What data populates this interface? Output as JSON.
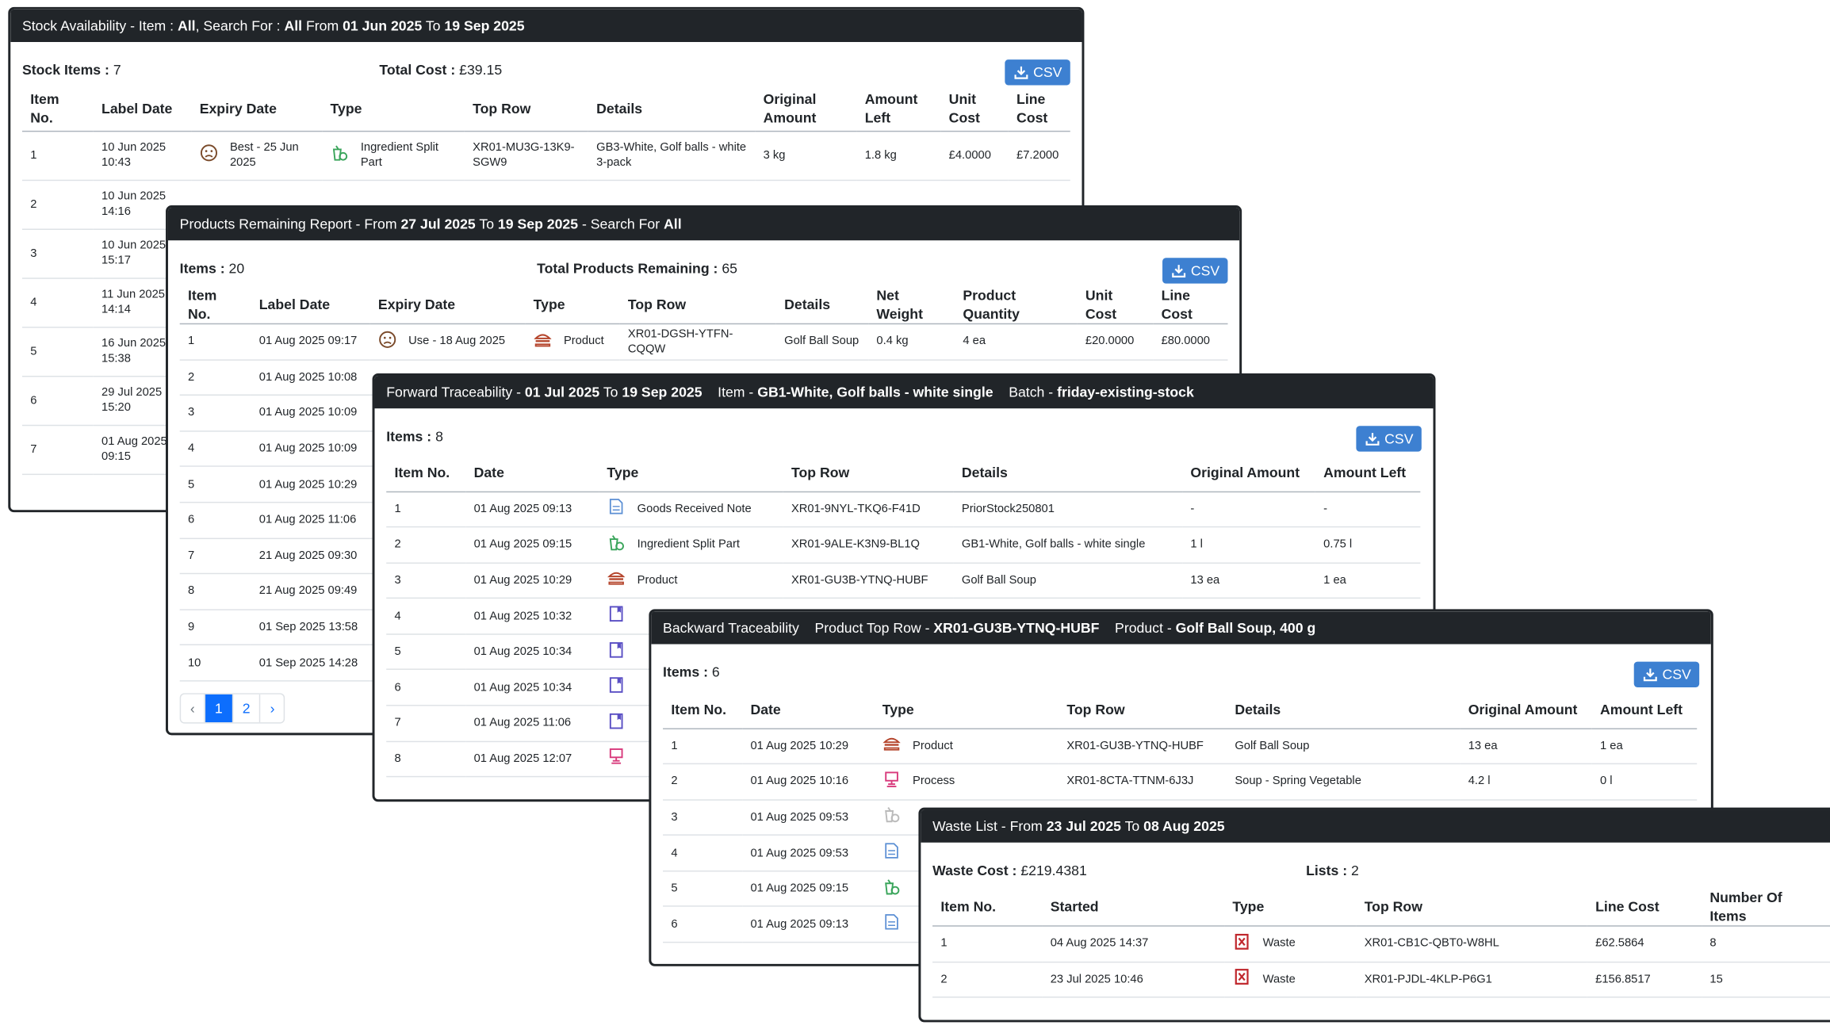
{
  "panels": [
    {
      "title": [
        {
          "t": "Stock Availability - Item : "
        },
        {
          "t": "All",
          "b": true
        },
        {
          "t": ", Search For : "
        },
        {
          "t": "All",
          "b": true
        },
        {
          "t": " From "
        },
        {
          "t": "01 Jun 2025",
          "b": true
        },
        {
          "t": " To "
        },
        {
          "t": "19 Sep 2025",
          "b": true
        }
      ],
      "summary": [
        {
          "label": "Stock Items :",
          "value": "7"
        },
        {
          "label": "Total Cost :",
          "value": "£39.15"
        }
      ],
      "csv": "CSV",
      "columns": [
        "Item No.",
        "Label Date",
        "Expiry Date",
        "Type",
        "Top Row",
        "Details",
        "Original Amount",
        "Amount Left",
        "Unit Cost",
        "Line Cost"
      ],
      "rows": [
        [
          "1",
          "10 Jun 2025 10:43",
          {
            "icon": "sad",
            "text": "Best - 25 Jun 2025"
          },
          {
            "icon": "split",
            "text": "Ingredient Split Part"
          },
          "XR01-MU3G-13K9-SGW9",
          "GB3-White, Golf balls - white 3-pack",
          "3 kg",
          "1.8 kg",
          "£4.0000",
          "£7.2000"
        ],
        [
          "2",
          "10 Jun 2025 14:16"
        ],
        [
          "3",
          "10 Jun 2025 15:17"
        ],
        [
          "4",
          "11 Jun 2025 14:14"
        ],
        [
          "5",
          "16 Jun 2025 15:38"
        ],
        [
          "6",
          "29 Jul 2025 15:20"
        ],
        [
          "7",
          "01 Aug 2025 09:15"
        ]
      ]
    },
    {
      "title": [
        {
          "t": "Products Remaining Report - From "
        },
        {
          "t": "27 Jul 2025",
          "b": true
        },
        {
          "t": " To "
        },
        {
          "t": "19 Sep 2025",
          "b": true
        },
        {
          "t": " - Search For "
        },
        {
          "t": "All",
          "b": true
        }
      ],
      "summary": [
        {
          "label": "Items :",
          "value": "20"
        },
        {
          "label": "Total Products Remaining :",
          "value": "65"
        }
      ],
      "csv": "CSV",
      "columns": [
        "Item No.",
        "Label Date",
        "Expiry Date",
        "Type",
        "Top Row",
        "Details",
        "Net Weight",
        "Product Quantity",
        "Unit Cost",
        "Line Cost"
      ],
      "rows": [
        [
          "1",
          "01 Aug 2025 09:17",
          {
            "icon": "sad",
            "text": "Use - 18 Aug 2025"
          },
          {
            "icon": "product",
            "text": "Product"
          },
          "XR01-DGSH-YTFN-CQQW",
          "Golf Ball Soup",
          "0.4 kg",
          "4 ea",
          "£20.0000",
          "£80.0000"
        ],
        [
          "2",
          "01 Aug 2025 10:08"
        ],
        [
          "3",
          "01 Aug 2025 10:09"
        ],
        [
          "4",
          "01 Aug 2025 10:09"
        ],
        [
          "5",
          "01 Aug 2025 10:29"
        ],
        [
          "6",
          "01 Aug 2025 11:06"
        ],
        [
          "7",
          "21 Aug 2025 09:30"
        ],
        [
          "8",
          "21 Aug 2025 09:49"
        ],
        [
          "9",
          "01 Sep 2025 13:58"
        ],
        [
          "10",
          "01 Sep 2025 14:28"
        ]
      ],
      "pagination": [
        "‹",
        "1",
        "2",
        "›"
      ],
      "active_page": 1
    },
    {
      "title": [
        {
          "t": "Forward Traceability - "
        },
        {
          "t": "01 Jul 2025",
          "b": true
        },
        {
          "t": " To "
        },
        {
          "t": "19 Sep 2025",
          "b": true
        },
        {
          "t": "    Item - "
        },
        {
          "t": "GB1-White, Golf balls - white single",
          "b": true
        },
        {
          "t": "    Batch - "
        },
        {
          "t": "friday-existing-stock",
          "b": true
        }
      ],
      "summary": [
        {
          "label": "Items :",
          "value": "8"
        }
      ],
      "csv": "CSV",
      "columns": [
        "Item No.",
        "Date",
        "Type",
        "Top Row",
        "Details",
        "Original Amount",
        "Amount Left"
      ],
      "rows": [
        [
          "1",
          "01 Aug 2025 09:13",
          {
            "icon": "grn",
            "text": "Goods Received Note"
          },
          "XR01-9NYL-TKQ6-F41D",
          "PriorStock250801",
          "-",
          "-"
        ],
        [
          "2",
          "01 Aug 2025 09:15",
          {
            "icon": "split",
            "text": "Ingredient Split Part"
          },
          "XR01-9ALE-K3N9-BL1Q",
          "GB1-White, Golf balls - white single",
          "1 l",
          "0.75 l"
        ],
        [
          "3",
          "01 Aug 2025 10:29",
          {
            "icon": "product",
            "text": "Product"
          },
          "XR01-GU3B-YTNQ-HUBF",
          "Golf Ball Soup",
          "13 ea",
          "1 ea"
        ],
        [
          "4",
          "01 Aug 2025 10:32",
          {
            "icon": "label"
          }
        ],
        [
          "5",
          "01 Aug 2025 10:34",
          {
            "icon": "label"
          }
        ],
        [
          "6",
          "01 Aug 2025 10:34",
          {
            "icon": "label"
          }
        ],
        [
          "7",
          "01 Aug 2025 11:06",
          {
            "icon": "label"
          }
        ],
        [
          "8",
          "01 Aug 2025 12:07",
          {
            "icon": "process"
          }
        ]
      ]
    },
    {
      "title": [
        {
          "t": "Backward Traceability    Product Top Row - "
        },
        {
          "t": "XR01-GU3B-YTNQ-HUBF",
          "b": true
        },
        {
          "t": "    Product - "
        },
        {
          "t": "Golf Ball Soup, 400 g",
          "b": true
        }
      ],
      "summary": [
        {
          "label": "Items :",
          "value": "6"
        }
      ],
      "csv": "CSV",
      "columns": [
        "Item No.",
        "Date",
        "Type",
        "Top Row",
        "Details",
        "Original Amount",
        "Amount Left"
      ],
      "rows": [
        [
          "1",
          "01 Aug 2025 10:29",
          {
            "icon": "product",
            "text": "Product"
          },
          "XR01-GU3B-YTNQ-HUBF",
          "Golf Ball Soup",
          "13 ea",
          "1 ea"
        ],
        [
          "2",
          "01 Aug 2025 10:16",
          {
            "icon": "process",
            "text": "Process"
          },
          "XR01-8CTA-TTNM-6J3J",
          "Soup - Spring Vegetable",
          "4.2 l",
          "0 l"
        ],
        [
          "3",
          "01 Aug 2025 09:53",
          {
            "icon": "split-grey"
          }
        ],
        [
          "4",
          "01 Aug 2025 09:53",
          {
            "icon": "grn"
          }
        ],
        [
          "5",
          "01 Aug 2025 09:15",
          {
            "icon": "split"
          }
        ],
        [
          "6",
          "01 Aug 2025 09:13",
          {
            "icon": "grn"
          }
        ]
      ]
    },
    {
      "title": [
        {
          "t": "Waste List - From "
        },
        {
          "t": "23 Jul 2025",
          "b": true
        },
        {
          "t": " To "
        },
        {
          "t": "08 Aug 2025",
          "b": true
        }
      ],
      "summary": [
        {
          "label": "Waste Cost :",
          "value": "£219.4381"
        },
        {
          "label": "Lists :",
          "value": "2"
        }
      ],
      "columns": [
        "Item No.",
        "Started",
        "Type",
        "Top Row",
        "Line Cost",
        "Number Of Items"
      ],
      "rows": [
        [
          "1",
          "04 Aug 2025 14:37",
          {
            "icon": "waste",
            "text": "Waste"
          },
          "XR01-CB1C-QBT0-W8HL",
          "£62.5864",
          "8"
        ],
        [
          "2",
          "23 Jul 2025 10:46",
          {
            "icon": "waste",
            "text": "Waste"
          },
          "XR01-PJDL-4KLP-P6G1",
          "£156.8517",
          "15"
        ]
      ]
    }
  ]
}
